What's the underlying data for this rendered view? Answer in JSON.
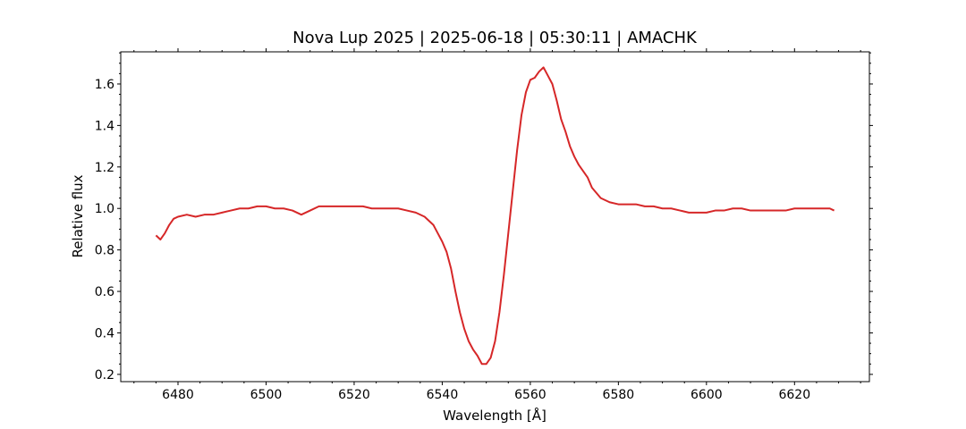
{
  "chart_data": {
    "type": "line",
    "title": "Nova Lup 2025 | 2025-06-18 | 05:30:11 | AMACHK",
    "xlabel": "Wavelength [Å]",
    "ylabel": "Relative flux",
    "xlim": [
      6467,
      6637
    ],
    "ylim": [
      0.165,
      1.755
    ],
    "xticks": [
      6480,
      6500,
      6520,
      6540,
      6560,
      6580,
      6600,
      6620
    ],
    "yticks": [
      0.2,
      0.4,
      0.6,
      0.8,
      1.0,
      1.2,
      1.4,
      1.6
    ],
    "grid": false,
    "legend": "none",
    "series": [
      {
        "color": "#d62728",
        "x": [
          6475,
          6476,
          6477,
          6478,
          6479,
          6480,
          6482,
          6484,
          6486,
          6488,
          6490,
          6492,
          6494,
          6496,
          6498,
          6500,
          6502,
          6504,
          6506,
          6508,
          6510,
          6512,
          6514,
          6516,
          6518,
          6520,
          6522,
          6524,
          6526,
          6528,
          6530,
          6532,
          6534,
          6536,
          6538,
          6539,
          6540,
          6541,
          6542,
          6543,
          6544,
          6545,
          6546,
          6547,
          6548,
          6549,
          6550,
          6551,
          6552,
          6553,
          6554,
          6555,
          6556,
          6557,
          6558,
          6559,
          6560,
          6561,
          6562,
          6563,
          6564,
          6565,
          6566,
          6567,
          6568,
          6569,
          6570,
          6571,
          6572,
          6573,
          6574,
          6576,
          6578,
          6580,
          6582,
          6584,
          6586,
          6588,
          6590,
          6592,
          6594,
          6596,
          6598,
          6600,
          6602,
          6604,
          6606,
          6608,
          6610,
          6612,
          6614,
          6616,
          6618,
          6620,
          6622,
          6624,
          6626,
          6628,
          6629
        ],
        "y": [
          0.87,
          0.85,
          0.88,
          0.92,
          0.95,
          0.96,
          0.97,
          0.96,
          0.97,
          0.97,
          0.98,
          0.99,
          1.0,
          1.0,
          1.01,
          1.01,
          1.0,
          1.0,
          0.99,
          0.97,
          0.99,
          1.01,
          1.01,
          1.01,
          1.01,
          1.01,
          1.01,
          1.0,
          1.0,
          1.0,
          1.0,
          0.99,
          0.98,
          0.96,
          0.92,
          0.88,
          0.84,
          0.79,
          0.71,
          0.6,
          0.5,
          0.42,
          0.36,
          0.32,
          0.29,
          0.25,
          0.25,
          0.28,
          0.36,
          0.5,
          0.68,
          0.88,
          1.08,
          1.28,
          1.45,
          1.56,
          1.62,
          1.63,
          1.66,
          1.68,
          1.64,
          1.6,
          1.52,
          1.43,
          1.37,
          1.3,
          1.25,
          1.21,
          1.18,
          1.15,
          1.1,
          1.05,
          1.03,
          1.02,
          1.02,
          1.02,
          1.01,
          1.01,
          1.0,
          1.0,
          0.99,
          0.98,
          0.98,
          0.98,
          0.99,
          0.99,
          1.0,
          1.0,
          0.99,
          0.99,
          0.99,
          0.99,
          0.99,
          1.0,
          1.0,
          1.0,
          1.0,
          1.0,
          0.99
        ]
      }
    ]
  }
}
